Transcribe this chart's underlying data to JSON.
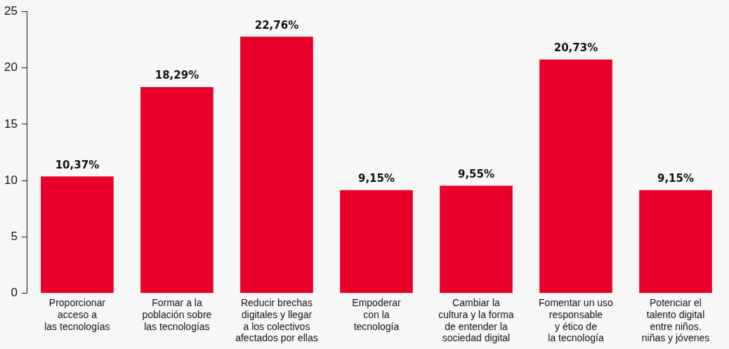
{
  "chart_data": {
    "type": "bar",
    "categories": [
      "Proporcionar\nacceso a\nlas tecnologías",
      "Formar a la\npoblación sobre\nlas tecnologías",
      "Reducir brechas\ndigitales y llegar\na los colectivos\nafectados por ellas",
      "Empoderar\ncon la\ntecnología",
      "Cambiar la\ncultura y la forma\nde entender la\nsociedad digital",
      "Fomentar un uso\nresponsable\ny ético de\nla tecnología",
      "Potenciar el\ntalento digital\nentre niños.\nniñas y jóvenes"
    ],
    "values": [
      10.37,
      18.29,
      22.76,
      9.15,
      9.55,
      20.73,
      9.15
    ],
    "value_labels": [
      "10,37%",
      "18,29%",
      "22,76%",
      "9,15%",
      "9,55%",
      "20,73%",
      "9,15%"
    ],
    "color": "#e8002a",
    "ylim": [
      0,
      25
    ],
    "yticks": [
      0,
      5,
      10,
      15,
      20,
      25
    ],
    "grid": false,
    "legend": false
  }
}
